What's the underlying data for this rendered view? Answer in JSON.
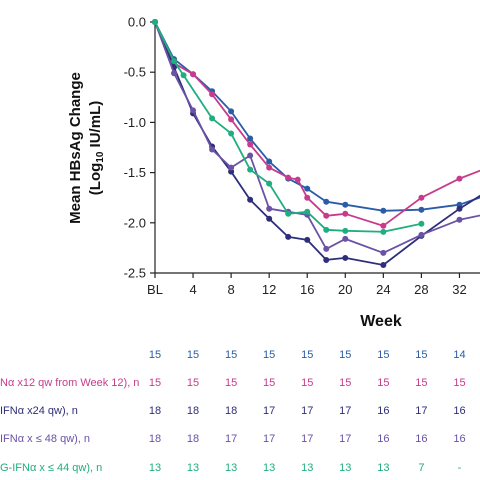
{
  "chart_data": {
    "type": "line",
    "title": "",
    "ylabel_main": "Mean HBsAg Change",
    "ylabel_unit_prefix": "(Log",
    "ylabel_unit_sub": "10",
    "ylabel_unit_suffix": " IU/mL)",
    "xlabel": "Week",
    "ylim": [
      -2.5,
      0.0
    ],
    "y_ticks": [
      0.0,
      -0.5,
      -1.0,
      -1.5,
      -2.0,
      -2.5
    ],
    "y_tick_labels": [
      "0.0",
      "-0.5",
      "-1.0",
      "-1.5",
      "-2.0",
      "-2.5"
    ],
    "x_ticks": [
      0,
      4,
      8,
      12,
      16,
      20,
      24,
      28,
      32
    ],
    "x_tick_labels": [
      "BL",
      "4",
      "8",
      "12",
      "16",
      "20",
      "24",
      "28",
      "32"
    ],
    "xlim": [
      0,
      35
    ],
    "grid": false,
    "series": [
      {
        "color": "#2a5ca8",
        "x": [
          0,
          2,
          4,
          6,
          8,
          10,
          12,
          14,
          16,
          18,
          20,
          24,
          28,
          32,
          35
        ],
        "y": [
          0.0,
          -0.37,
          -0.52,
          -0.69,
          -0.89,
          -1.16,
          -1.39,
          -1.56,
          -1.66,
          -1.79,
          -1.82,
          -1.88,
          -1.87,
          -1.82,
          -1.72
        ]
      },
      {
        "color": "#c83b8c",
        "x": [
          0,
          2,
          4,
          6,
          8,
          10,
          12,
          14,
          15,
          16,
          18,
          20,
          24,
          28,
          32,
          35
        ],
        "y": [
          0.0,
          -0.41,
          -0.52,
          -0.72,
          -0.97,
          -1.22,
          -1.45,
          -1.55,
          -1.57,
          -1.75,
          -1.93,
          -1.91,
          -2.03,
          -1.75,
          -1.56,
          -1.45
        ]
      },
      {
        "color": "#2e2e7a",
        "x": [
          0,
          2,
          4,
          6,
          8,
          10,
          12,
          14,
          16,
          18,
          20,
          24,
          28,
          32,
          35
        ],
        "y": [
          0.0,
          -0.45,
          -0.91,
          -1.24,
          -1.49,
          -1.77,
          -1.96,
          -2.14,
          -2.17,
          -2.37,
          -2.35,
          -2.42,
          -2.13,
          -1.86,
          -1.68
        ]
      },
      {
        "color": "#6a52a6",
        "x": [
          0,
          2,
          4,
          6,
          8,
          10,
          12,
          14,
          16,
          18,
          20,
          24,
          28,
          32,
          35
        ],
        "y": [
          0.0,
          -0.51,
          -0.88,
          -1.27,
          -1.45,
          -1.33,
          -1.86,
          -1.89,
          -1.92,
          -2.26,
          -2.16,
          -2.3,
          -2.12,
          -1.97,
          -1.91
        ]
      },
      {
        "color": "#1fae7f",
        "x": [
          0,
          2,
          3,
          6,
          8,
          10,
          12,
          14,
          16,
          18,
          20,
          24,
          28
        ],
        "y": [
          0.0,
          -0.39,
          -0.53,
          -0.96,
          -1.11,
          -1.47,
          -1.61,
          -1.91,
          -1.89,
          -2.07,
          -2.08,
          -2.09,
          -2.01
        ]
      }
    ]
  },
  "n_table": {
    "weeks": [
      4,
      8,
      12,
      16,
      20,
      24,
      28,
      32
    ],
    "rows": [
      {
        "label": "",
        "color": "#2a5ca8",
        "counts": [
          "15",
          "15",
          "15",
          "15",
          "15",
          "15",
          "15",
          "14"
        ]
      },
      {
        "label": "Nα x12 qw from Week 12), n",
        "color": "#c83b8c",
        "counts": [
          "15",
          "15",
          "15",
          "15",
          "15",
          "15",
          "15",
          "15"
        ]
      },
      {
        "label": "IFNα x24 qw), n",
        "color": "#2e2e7a",
        "counts": [
          "18",
          "18",
          "17",
          "17",
          "17",
          "16",
          "17",
          "16"
        ]
      },
      {
        "label": "IFNα x ≤ 48 qw), n",
        "color": "#6a52a6",
        "counts": [
          "18",
          "17",
          "17",
          "17",
          "17",
          "16",
          "16",
          "16"
        ]
      },
      {
        "label": "G-IFNα x ≤ 44 qw), n",
        "color": "#1fae7f",
        "counts": [
          "13",
          "13",
          "13",
          "13",
          "13",
          "13",
          "7",
          "-"
        ]
      }
    ]
  }
}
